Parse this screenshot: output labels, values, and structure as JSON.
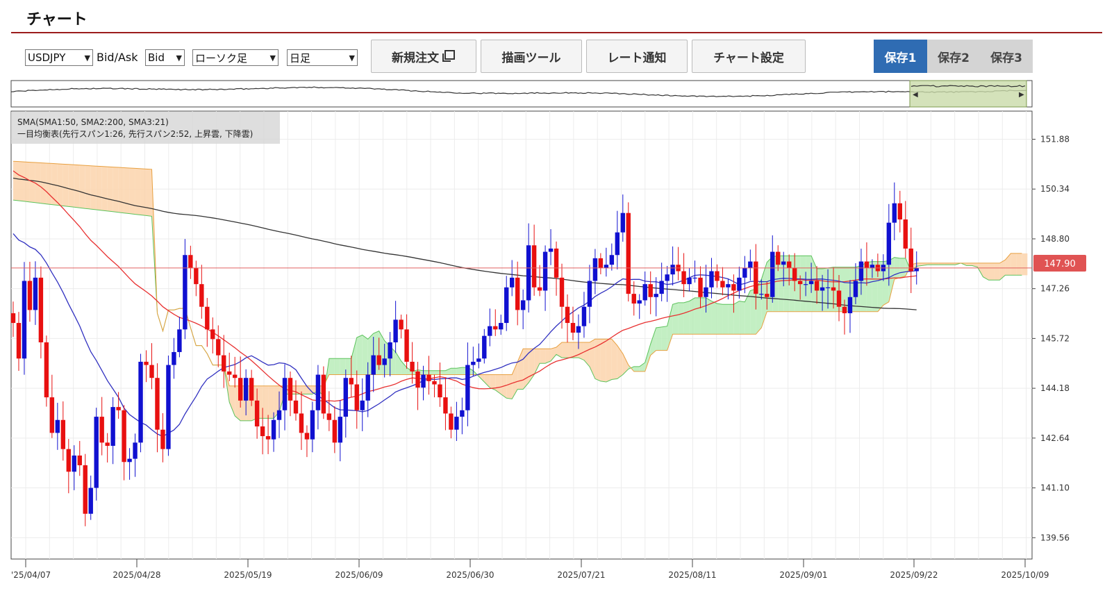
{
  "header": {
    "title": "チャート"
  },
  "controls": {
    "pair": "USDJPY",
    "bidask_label": "Bid/Ask",
    "bidask": "Bid",
    "chart_type": "ローソク足",
    "period": "日足"
  },
  "buttons": {
    "new_order": "新規注文",
    "draw_tool": "描画ツール",
    "rate_alert": "レート通知",
    "chart_settings": "チャート設定"
  },
  "saves": [
    "保存1",
    "保存2",
    "保存3"
  ],
  "colors": {
    "up": "#1010d0",
    "down": "#e81010",
    "current_line": "#e06060",
    "accent": "#2f6cb3"
  },
  "chart_data": {
    "type": "candlestick",
    "legend": [
      "SMA(SMA1:50, SMA2:200, SMA3:21)",
      "一目均衡表(先行スパン1:26, 先行スパン2:52, 上昇雲, 下降雲)"
    ],
    "current_price": "147.90",
    "y_ticks": [
      "151.88",
      "150.34",
      "148.80",
      "147.26",
      "145.72",
      "144.18",
      "142.64",
      "141.10",
      "139.56"
    ],
    "ylim": [
      138.9,
      152.75
    ],
    "x_labels": [
      "'25/04/07",
      "2025/04/28",
      "2025/05/19",
      "2025/06/09",
      "2025/06/30",
      "2025/07/21",
      "2025/08/11",
      "2025/09/01",
      "2025/09/22",
      "2025/10/09"
    ],
    "closes": [
      146.2,
      145.1,
      147.5,
      146.6,
      147.6,
      145.6,
      143.9,
      142.8,
      143.2,
      142.3,
      141.6,
      142.1,
      141.8,
      140.3,
      141.1,
      143.3,
      142.5,
      142.4,
      143.6,
      143.5,
      141.9,
      142.0,
      142.5,
      145.0,
      144.9,
      144.5,
      142.9,
      142.3,
      144.9,
      145.3,
      146.0,
      148.3,
      147.9,
      147.4,
      146.7,
      146.0,
      145.7,
      145.2,
      144.7,
      144.6,
      144.5,
      143.8,
      144.5,
      143.8,
      143.0,
      142.7,
      142.6,
      143.2,
      143.5,
      144.5,
      143.8,
      143.4,
      142.8,
      142.6,
      143.5,
      144.6,
      143.4,
      143.2,
      142.5,
      143.3,
      144.5,
      144.3,
      143.5,
      143.8,
      144.6,
      145.2,
      144.9,
      145.1,
      145.6,
      146.3,
      146.0,
      145.0,
      144.7,
      144.2,
      144.6,
      144.4,
      144.3,
      143.9,
      143.4,
      142.9,
      143.3,
      143.5,
      144.9,
      145.0,
      145.1,
      145.8,
      146.1,
      146.0,
      146.2,
      147.3,
      147.6,
      146.6,
      146.9,
      148.6,
      147.3,
      147.2,
      148.4,
      148.5,
      147.6,
      146.7,
      146.2,
      145.9,
      146.1,
      146.7,
      147.5,
      148.2,
      147.9,
      148.0,
      148.3,
      149.0,
      149.6,
      147.1,
      146.8,
      146.9,
      147.4,
      147.0,
      147.1,
      147.5,
      147.7,
      148.0,
      147.8,
      147.4,
      147.6,
      147.6,
      147.0,
      147.3,
      147.8,
      147.5,
      147.3,
      147.4,
      147.2,
      147.6,
      147.9,
      148.1,
      147.1,
      147.1,
      147.0,
      148.4,
      148.0,
      148.1,
      147.9,
      147.5,
      147.4,
      147.4,
      147.5,
      147.2,
      147.3,
      147.3,
      147.2,
      146.7,
      146.5,
      147.0,
      147.5,
      148.1,
      147.9,
      148.0,
      147.8,
      148.0,
      149.3,
      149.9,
      149.4,
      148.5,
      147.8,
      147.9
    ]
  }
}
